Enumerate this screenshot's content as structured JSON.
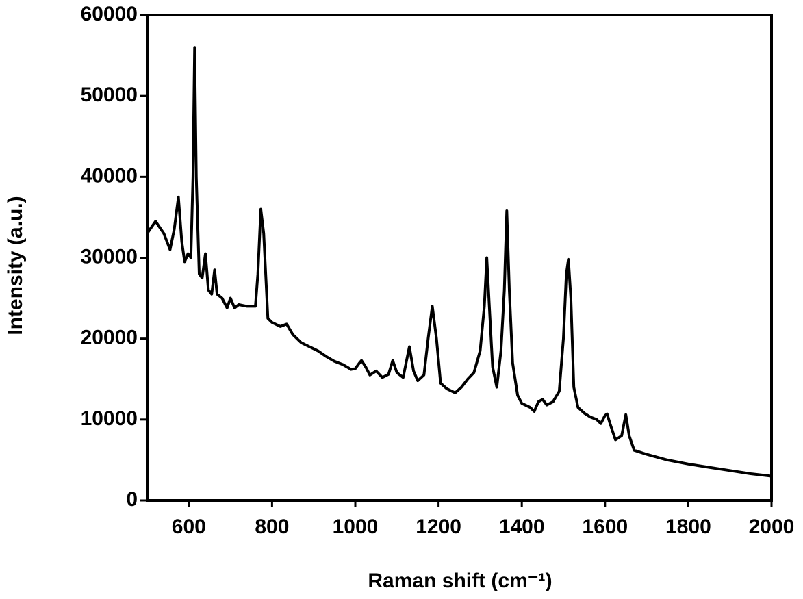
{
  "chart_data": {
    "type": "line",
    "x_label": "Raman shift (cm⁻¹)",
    "y_label": "Intensity (a.u.)",
    "color": "#000000",
    "xlim": [
      500,
      2000
    ],
    "xticks": [
      600,
      800,
      1000,
      1200,
      1400,
      1600,
      1800,
      2000
    ],
    "ylim": [
      0,
      60000
    ],
    "yticks": [
      0,
      10000,
      20000,
      30000,
      40000,
      50000,
      60000
    ],
    "x": [
      500,
      520,
      540,
      555,
      565,
      575,
      583,
      590,
      598,
      605,
      610,
      614,
      618,
      625,
      632,
      640,
      647,
      655,
      662,
      668,
      680,
      692,
      700,
      710,
      720,
      740,
      760,
      766,
      773,
      780,
      790,
      800,
      820,
      835,
      850,
      870,
      890,
      910,
      930,
      950,
      970,
      990,
      1000,
      1010,
      1015,
      1025,
      1035,
      1050,
      1065,
      1080,
      1090,
      1100,
      1115,
      1130,
      1140,
      1150,
      1165,
      1175,
      1185,
      1195,
      1205,
      1220,
      1240,
      1255,
      1270,
      1285,
      1300,
      1310,
      1316,
      1322,
      1330,
      1340,
      1350,
      1358,
      1364,
      1370,
      1378,
      1390,
      1400,
      1420,
      1430,
      1440,
      1450,
      1460,
      1475,
      1490,
      1500,
      1507,
      1512,
      1518,
      1525,
      1535,
      1550,
      1565,
      1580,
      1590,
      1600,
      1605,
      1612,
      1625,
      1640,
      1650,
      1658,
      1670,
      1700,
      1750,
      1800,
      1850,
      1900,
      1950,
      2000
    ],
    "values": [
      33000,
      34500,
      33000,
      31000,
      33500,
      37500,
      32000,
      29500,
      30500,
      30000,
      40000,
      56000,
      40000,
      28000,
      27500,
      30500,
      26000,
      25500,
      28500,
      25500,
      25000,
      23800,
      25000,
      23800,
      24200,
      24000,
      24000,
      28000,
      36000,
      33000,
      22500,
      22000,
      21500,
      21800,
      20500,
      19500,
      19000,
      18500,
      17800,
      17200,
      16800,
      16200,
      16300,
      17000,
      17300,
      16500,
      15500,
      16000,
      15200,
      15600,
      17300,
      15800,
      15200,
      19000,
      16000,
      14800,
      15500,
      20000,
      24000,
      20000,
      14500,
      13800,
      13300,
      14000,
      15000,
      15800,
      18500,
      24000,
      30000,
      24000,
      16500,
      14000,
      18500,
      26000,
      35800,
      26000,
      17000,
      13000,
      12000,
      11500,
      11000,
      12200,
      12500,
      11800,
      12200,
      13500,
      20000,
      28000,
      29800,
      25000,
      14000,
      11500,
      10800,
      10300,
      10000,
      9500,
      10500,
      10700,
      9500,
      7500,
      8000,
      10600,
      8000,
      6200,
      5700,
      5000,
      4500,
      4100,
      3700,
      3300,
      3000
    ]
  }
}
